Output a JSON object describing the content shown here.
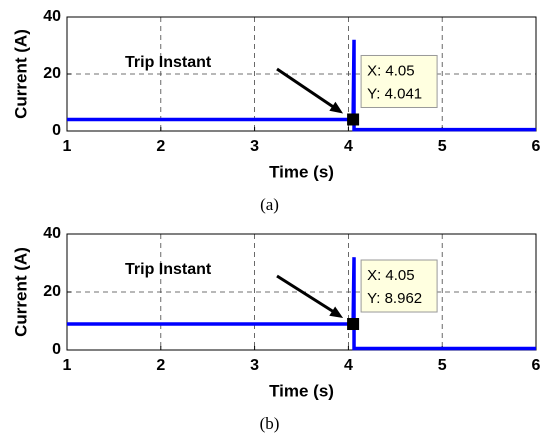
{
  "chart_data": [
    {
      "type": "line",
      "caption": "(a)",
      "x_label": "Time (s)",
      "y_label": "Current (A)",
      "xlim": [
        1,
        6
      ],
      "xticks": [
        1,
        2,
        3,
        4,
        5,
        6
      ],
      "ylim": [
        0,
        40
      ],
      "yticks": [
        0,
        20,
        40
      ],
      "grid": true,
      "annotation": "Trip Instant",
      "series": [
        {
          "color": "#0000ff",
          "x": [
            1,
            4.05,
            4.06,
            4.06,
            6
          ],
          "values": [
            4.041,
            4.041,
            32,
            0.5,
            0.5
          ]
        }
      ],
      "datatip": {
        "x": 4.05,
        "y": 4.041,
        "labels": [
          "X: 4.05",
          "Y: 4.041"
        ]
      }
    },
    {
      "type": "line",
      "caption": "(b)",
      "x_label": "Time (s)",
      "y_label": "Current (A)",
      "xlim": [
        1,
        6
      ],
      "xticks": [
        1,
        2,
        3,
        4,
        5,
        6
      ],
      "ylim": [
        0,
        40
      ],
      "yticks": [
        0,
        20,
        40
      ],
      "grid": true,
      "annotation": "Trip Instant",
      "series": [
        {
          "color": "#0000ff",
          "x": [
            1,
            4.05,
            4.06,
            4.06,
            6
          ],
          "values": [
            8.962,
            8.962,
            32,
            0.5,
            0.5
          ]
        }
      ],
      "datatip": {
        "x": 4.05,
        "y": 8.962,
        "labels": [
          "X: 4.05",
          "Y: 8.962"
        ]
      }
    }
  ]
}
